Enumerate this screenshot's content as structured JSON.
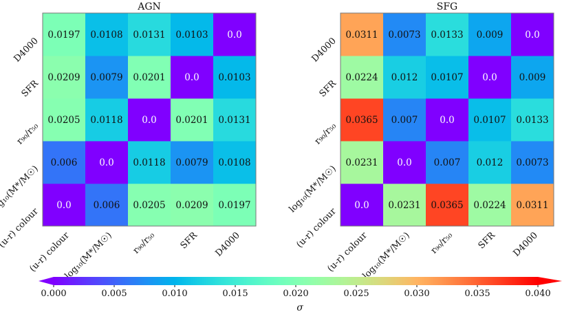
{
  "chart_data": [
    {
      "type": "heatmap",
      "title": "AGN",
      "categories": [
        "(u-r) colour",
        "log₁₀(M*/M☉)",
        "r₉₀/r₅₀",
        "SFR",
        "D4000"
      ],
      "values": [
        [
          0.0,
          0.006,
          0.0205,
          0.0209,
          0.0197
        ],
        [
          0.006,
          0.0,
          0.0118,
          0.0079,
          0.0108
        ],
        [
          0.0205,
          0.0118,
          0.0,
          0.0201,
          0.0131
        ],
        [
          0.0209,
          0.0079,
          0.0201,
          0.0,
          0.0103
        ],
        [
          0.0197,
          0.0108,
          0.0131,
          0.0103,
          0.0
        ]
      ]
    },
    {
      "type": "heatmap",
      "title": "SFG",
      "categories": [
        "(u-r) colour",
        "log₁₀(M*/M☉)",
        "r₉₀/r₅₀",
        "SFR",
        "D4000"
      ],
      "values": [
        [
          0.0,
          0.0231,
          0.0365,
          0.0224,
          0.0311
        ],
        [
          0.0231,
          0.0,
          0.007,
          0.012,
          0.0073
        ],
        [
          0.0365,
          0.007,
          0.0,
          0.0107,
          0.0133
        ],
        [
          0.0224,
          0.012,
          0.0107,
          0.0,
          0.009
        ],
        [
          0.0311,
          0.0073,
          0.0133,
          0.009,
          0.0
        ]
      ]
    }
  ],
  "colorbar": {
    "label": "σ",
    "colormap": "rainbow",
    "range": [
      0.0,
      0.04
    ],
    "extend": "both",
    "ticks": [
      "0.000",
      "0.005",
      "0.010",
      "0.015",
      "0.020",
      "0.025",
      "0.030",
      "0.035",
      "0.040"
    ]
  }
}
